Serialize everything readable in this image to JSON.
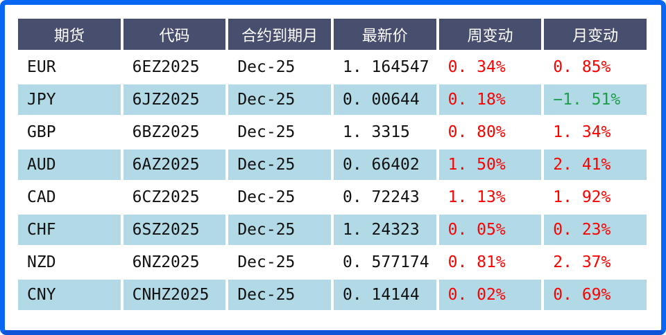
{
  "chart_data": {
    "type": "table",
    "columns": [
      "期货",
      "代码",
      "合约到期月",
      "最新价",
      "周变动",
      "月变动"
    ],
    "rows": [
      [
        "EUR",
        "6EZ2025",
        "Dec-25",
        "1. 164547",
        "0. 34%",
        "0. 85%"
      ],
      [
        "JPY",
        "6JZ2025",
        "Dec-25",
        "0. 00644",
        "0. 18%",
        "−1. 51%"
      ],
      [
        "GBP",
        "6BZ2025",
        "Dec-25",
        "1. 3315",
        "0. 80%",
        "1. 34%"
      ],
      [
        "AUD",
        "6AZ2025",
        "Dec-25",
        "0. 66402",
        "1. 50%",
        "2. 41%"
      ],
      [
        "CAD",
        "6CZ2025",
        "Dec-25",
        "0. 72243",
        "1. 13%",
        "1. 92%"
      ],
      [
        "CHF",
        "6SZ2025",
        "Dec-25",
        "1. 24323",
        "0. 05%",
        "0. 23%"
      ],
      [
        "NZD",
        "6NZ2025",
        "Dec-25",
        "0. 577174",
        "0. 81%",
        "2. 37%"
      ],
      [
        "CNY",
        "CNHZ2025",
        "Dec-25",
        "0. 14144",
        "0. 02%",
        "0. 69%"
      ]
    ],
    "cell_colors": {
      "week": [
        "red",
        "red",
        "red",
        "red",
        "red",
        "red",
        "red",
        "red"
      ],
      "month": [
        "red",
        "green",
        "red",
        "red",
        "red",
        "red",
        "red",
        "red"
      ]
    },
    "layout": {
      "striped_rows": "JPY, AUD, CHF, CNY",
      "legend_position": "none",
      "grid": "off"
    },
    "colors": {
      "outer_border": "#0766f2",
      "header_bg": "#484e6d",
      "header_text": "#ffffff",
      "row_stripe_bg": "#b1d9e6",
      "positive_change": "#fe0000",
      "negative_change": "#1e9e4d",
      "value_text": "#111111"
    }
  }
}
